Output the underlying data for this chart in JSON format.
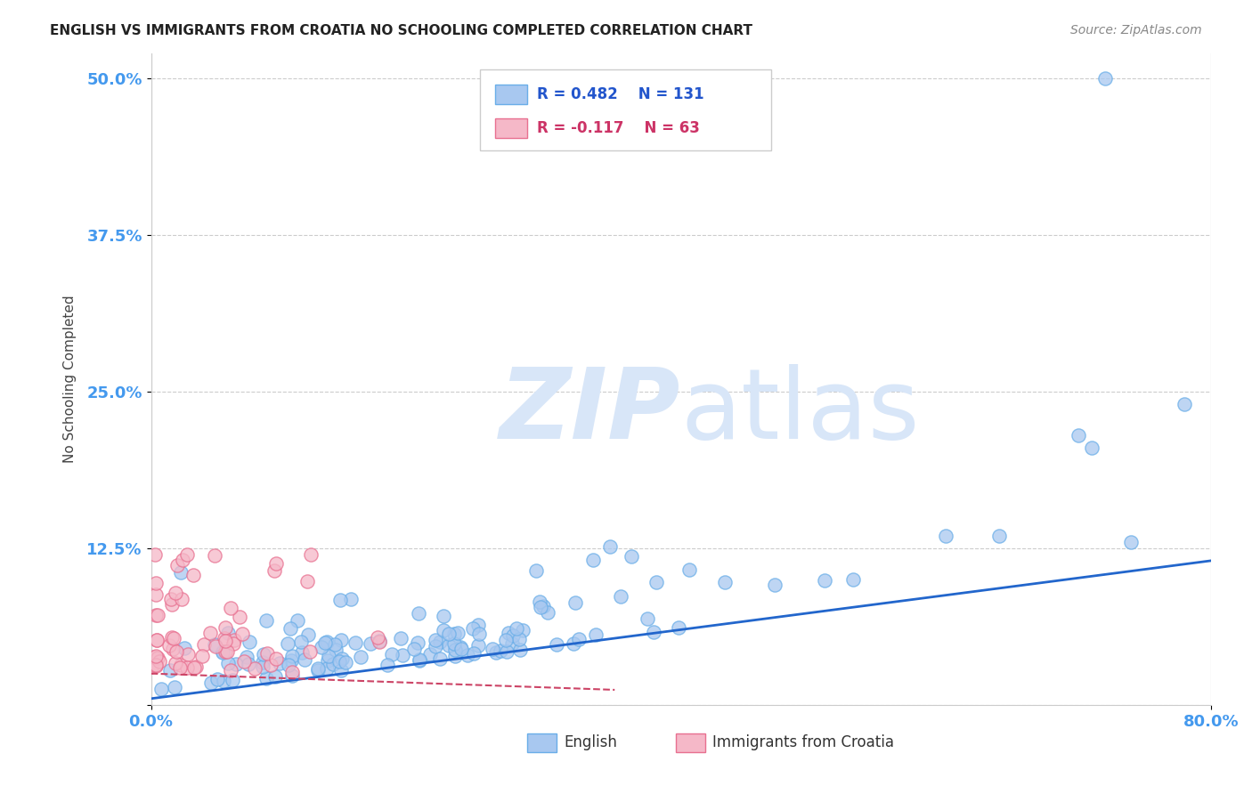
{
  "title": "ENGLISH VS IMMIGRANTS FROM CROATIA NO SCHOOLING COMPLETED CORRELATION CHART",
  "source": "Source: ZipAtlas.com",
  "ylabel": "No Schooling Completed",
  "xlim": [
    0.0,
    0.8
  ],
  "ylim": [
    0.0,
    0.52
  ],
  "yticks": [
    0.0,
    0.125,
    0.25,
    0.375,
    0.5
  ],
  "ytick_labels": [
    "",
    "12.5%",
    "25.0%",
    "37.5%",
    "50.0%"
  ],
  "xticks": [
    0.0,
    0.8
  ],
  "xtick_labels": [
    "0.0%",
    "80.0%"
  ],
  "grid_color": "#cccccc",
  "background_color": "#ffffff",
  "english_color": "#a8c8f0",
  "english_edge_color": "#6aaee8",
  "croatia_color": "#f5b8c8",
  "croatia_edge_color": "#e87090",
  "trend_english_color": "#2266cc",
  "trend_croatia_color": "#cc4466",
  "watermark_color": "#d8e6f8",
  "legend_R_english": "0.482",
  "legend_N_english": "131",
  "legend_R_croatia": "-0.117",
  "legend_N_croatia": "63",
  "english_N": 131,
  "croatia_N": 63,
  "english_trend_x": [
    0.0,
    0.8
  ],
  "english_trend_y": [
    0.005,
    0.115
  ],
  "croatia_trend_x": [
    0.0,
    0.35
  ],
  "croatia_trend_y": [
    0.025,
    0.012
  ]
}
